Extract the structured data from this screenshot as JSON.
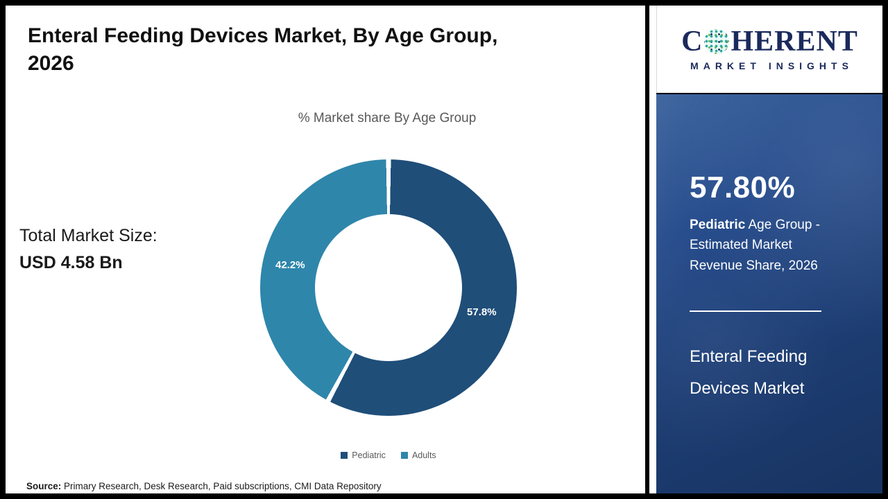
{
  "header": {
    "title_line1": "Enteral Feeding Devices Market, By Age Group,",
    "title_line2": "2026"
  },
  "chart_data": {
    "type": "pie",
    "donut": true,
    "title": "% Market share By Age Group",
    "categories": [
      "Pediatric",
      "Adults"
    ],
    "values": [
      57.8,
      42.2
    ],
    "data_labels": [
      "57.8%",
      "42.2%"
    ],
    "colors": [
      "#1f4e79",
      "#2e86ab"
    ],
    "label_color": "#ffffff",
    "legend_position": "bottom"
  },
  "total_market": {
    "label": "Total Market Size:",
    "value": "USD 4.58 Bn"
  },
  "source": {
    "label": "Source:",
    "text": " Primary Research, Desk Research, Paid subscriptions, CMI Data Repository"
  },
  "sidebar": {
    "logo": {
      "word_prefix": "C",
      "word_suffix": "HERENT",
      "subtitle": "MARKET INSIGHTS",
      "brand_color": "#1b2a5c",
      "globe_color": "#2aa79e"
    },
    "panel": {
      "background_color": "#1f4178",
      "stat_value": "57.80%",
      "desc_bold": "Pediatric",
      "desc_rest": " Age Group - Estimated Market Revenue Share, 2026",
      "market_name_line1": "Enteral Feeding",
      "market_name_line2": "Devices Market"
    }
  }
}
